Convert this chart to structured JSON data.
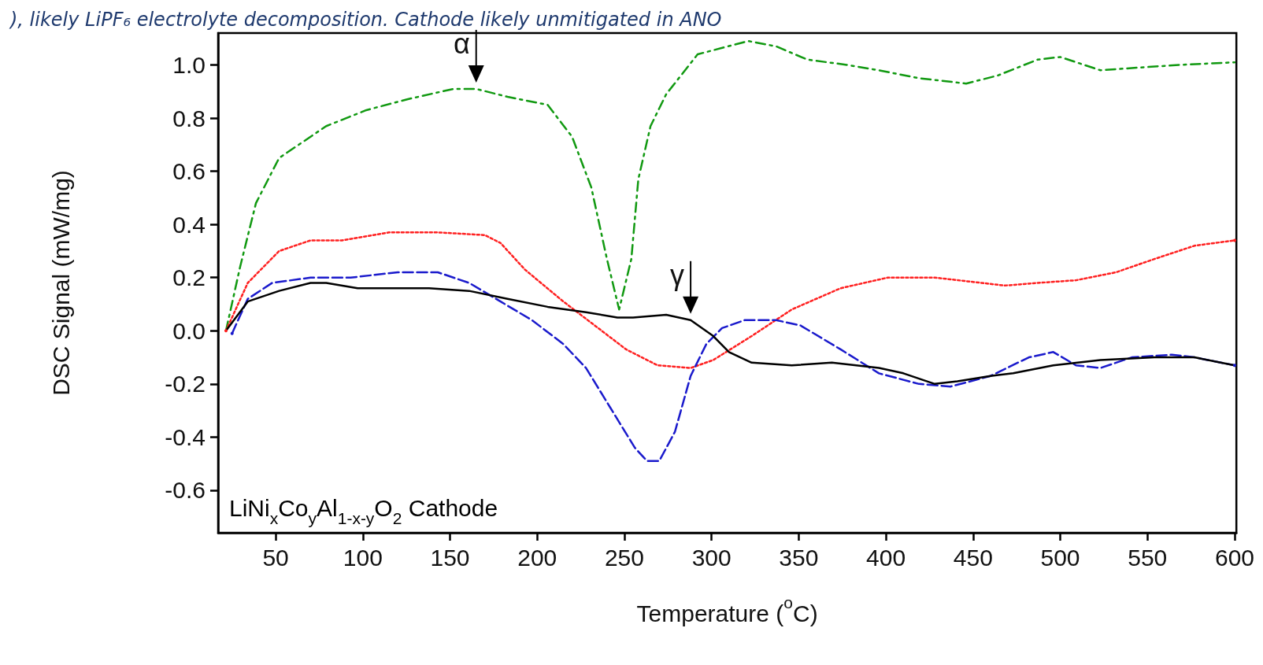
{
  "chart_data": {
    "type": "line",
    "title": "), likely LiPF₆ electrolyte decomposition. Cathode likely unmitigated in ANO",
    "xlabel": "Temperature ($^{o}$C)",
    "ylabel": "DSC Signal (mW/mg)",
    "xlim": [
      17,
      601
    ],
    "ylim": [
      -0.76,
      1.12
    ],
    "xticks": [
      50,
      100,
      150,
      200,
      250,
      300,
      350,
      400,
      450,
      500,
      550,
      600
    ],
    "yticks": [
      {
        "value": 1,
        "label": "1.0"
      },
      {
        "value": 0.8,
        "label": "0.8"
      },
      {
        "value": 0.6,
        "label": "0.6"
      },
      {
        "value": 0.4,
        "label": "0.4"
      },
      {
        "value": 0.2,
        "label": "0.2"
      },
      {
        "value": 0,
        "label": "0.0"
      },
      {
        "value": -0.2,
        "label": "-0.2"
      },
      {
        "value": -0.4,
        "label": "-0.4"
      },
      {
        "value": -0.6,
        "label": "-0.6"
      }
    ],
    "grid": false,
    "marker": "none",
    "annotations": [
      {
        "text": "α",
        "x": 165,
        "y": 0.91
      },
      {
        "text": "γ",
        "x": 288,
        "y": 0.04
      },
      "LiNi$_{x}$Co$_{y}$Al$_{1-x-y}$O$_{2}$ Cathode"
    ],
    "series": [
      {
        "color": "#119911",
        "line_style": "dashdot",
        "x": [
          21.5,
          29.6,
          38.7,
          52,
          79,
          102,
          125,
          152,
          165,
          183,
          206,
          220,
          231,
          240,
          247,
          254,
          258,
          265,
          274,
          292,
          321,
          337,
          355,
          378,
          396,
          419,
          446,
          464,
          487,
          500,
          523,
          545,
          568,
          600
        ],
        "values": [
          0,
          0.24,
          0.48,
          0.65,
          0.77,
          0.83,
          0.87,
          0.91,
          0.91,
          0.88,
          0.85,
          0.73,
          0.54,
          0.27,
          0.08,
          0.27,
          0.57,
          0.77,
          0.89,
          1.04,
          1.09,
          1.07,
          1.02,
          1.0,
          0.98,
          0.95,
          0.93,
          0.96,
          1.02,
          1.03,
          0.98,
          0.99,
          1.0,
          1.01
        ]
      },
      {
        "color": "#ff2020",
        "line_style": "dotted",
        "x": [
          21.5,
          34,
          52,
          70,
          88,
          115,
          143,
          170,
          179,
          193,
          215,
          233,
          251,
          269,
          288,
          301,
          323,
          346,
          374,
          401,
          428,
          455,
          468,
          487,
          509,
          532,
          554,
          577,
          600
        ],
        "values": [
          0,
          0.18,
          0.3,
          0.34,
          0.34,
          0.37,
          0.37,
          0.36,
          0.33,
          0.23,
          0.11,
          0.02,
          -0.07,
          -0.13,
          -0.14,
          -0.11,
          -0.02,
          0.08,
          0.16,
          0.2,
          0.2,
          0.18,
          0.17,
          0.18,
          0.19,
          0.22,
          0.27,
          0.32,
          0.34
        ]
      },
      {
        "color": "#1a1acc",
        "line_style": "dashed",
        "x": [
          25,
          34,
          48,
          70,
          93,
          120,
          143,
          161,
          179,
          197,
          215,
          228,
          242,
          256,
          263,
          270,
          279,
          288,
          297,
          306,
          319,
          337,
          351,
          374,
          396,
          419,
          437,
          460,
          482,
          496,
          509,
          523,
          541,
          564,
          577,
          600
        ],
        "values": [
          -0.01,
          0.12,
          0.18,
          0.2,
          0.2,
          0.22,
          0.22,
          0.18,
          0.11,
          0.04,
          -0.05,
          -0.14,
          -0.29,
          -0.44,
          -0.49,
          -0.49,
          -0.38,
          -0.17,
          -0.05,
          0.01,
          0.04,
          0.04,
          0.02,
          -0.07,
          -0.16,
          -0.2,
          -0.21,
          -0.17,
          -0.1,
          -0.08,
          -0.13,
          -0.14,
          -0.1,
          -0.09,
          -0.1,
          -0.13
        ]
      },
      {
        "color": "#000000",
        "line_style": "solid",
        "x": [
          21.5,
          34,
          52,
          70,
          79,
          97,
          115,
          138,
          161,
          183,
          206,
          228,
          246,
          255,
          274,
          288,
          301,
          310,
          323,
          346,
          369,
          396,
          410,
          428,
          441,
          460,
          473,
          496,
          523,
          554,
          577,
          600
        ],
        "values": [
          0,
          0.11,
          0.15,
          0.18,
          0.18,
          0.16,
          0.16,
          0.16,
          0.15,
          0.12,
          0.09,
          0.07,
          0.05,
          0.05,
          0.06,
          0.04,
          -0.02,
          -0.08,
          -0.12,
          -0.13,
          -0.12,
          -0.14,
          -0.16,
          -0.2,
          -0.19,
          -0.17,
          -0.16,
          -0.13,
          -0.11,
          -0.1,
          -0.1,
          -0.13
        ]
      }
    ]
  }
}
